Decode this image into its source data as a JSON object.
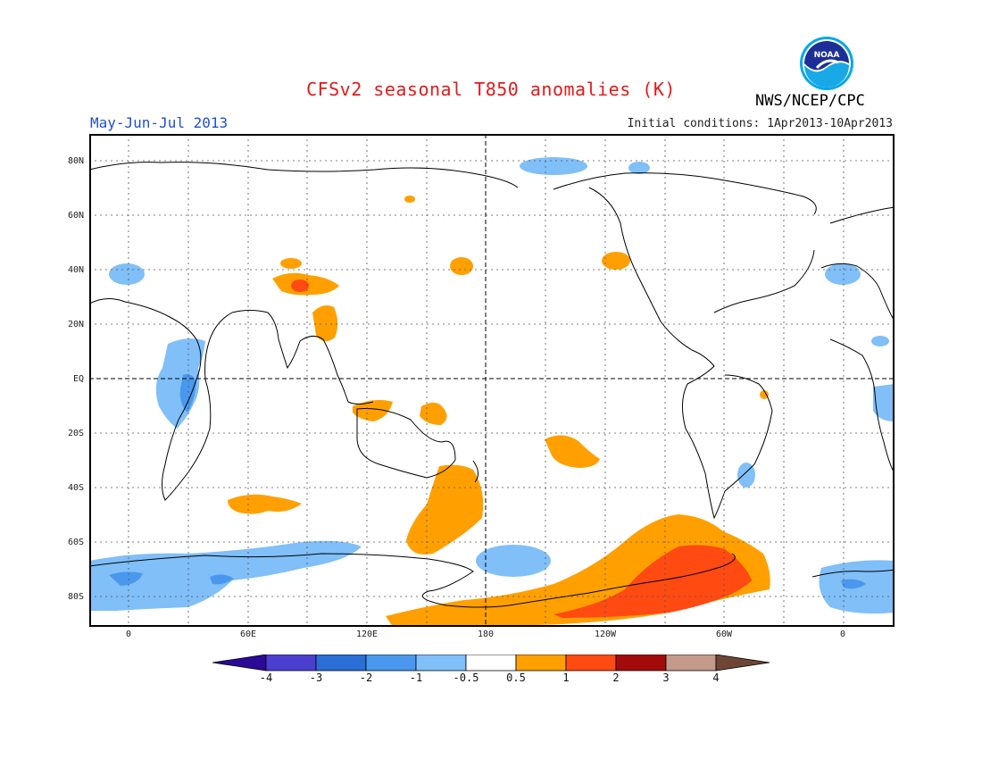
{
  "title": "CFSv2 seasonal T850 anomalies (K)",
  "period": "May-Jun-Jul 2013",
  "initial_conditions": "Initial conditions: 1Apr2013-10Apr2013",
  "agency": "NWS/NCEP/CPC",
  "logo_text": "NOAA",
  "lat_labels": [
    "80N",
    "60N",
    "40N",
    "20N",
    "EQ",
    "20S",
    "40S",
    "60S",
    "80S"
  ],
  "lon_labels": [
    "0",
    "60E",
    "120E",
    "180",
    "120W",
    "60W",
    "0"
  ],
  "colorbar": {
    "ticks": [
      "-4",
      "-3",
      "-2",
      "-1",
      "-0.5",
      "0.5",
      "1",
      "2",
      "3",
      "4"
    ],
    "colors": [
      "#2a0a96",
      "#4b3fd0",
      "#2a6ed6",
      "#4a98ee",
      "#80bff8",
      "#ffffff",
      "#ffa000",
      "#ff4a12",
      "#a30b0b",
      "#c59a8a",
      "#6e4636"
    ]
  },
  "icons": {
    "logo": "noaa-logo-icon"
  }
}
